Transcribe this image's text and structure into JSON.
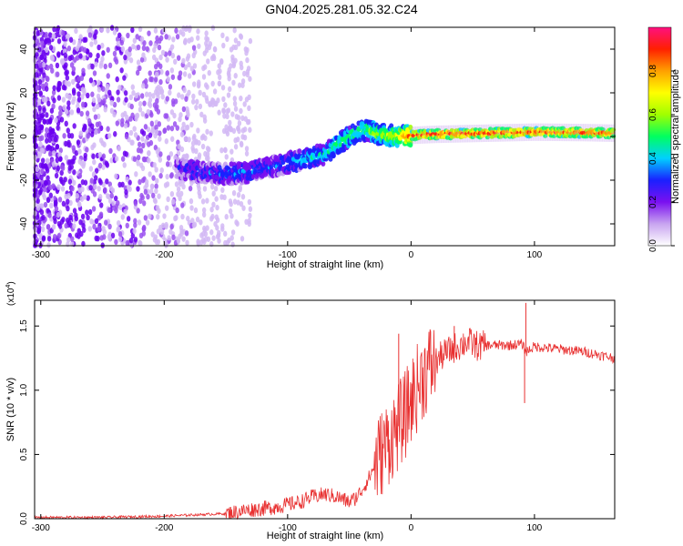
{
  "title": "GN04.2025.281.05.32.C24",
  "chart_data": [
    {
      "type": "heatmap",
      "title": "GN04.2025.281.05.32.C24",
      "xlabel": "Height of straight line (km)",
      "ylabel": "Frequency (Hz)",
      "xlim": [
        -305,
        165
      ],
      "ylim": [
        -50,
        50
      ],
      "xticks": [
        -300,
        -200,
        -100,
        0,
        100
      ],
      "yticks": [
        -40,
        -20,
        0,
        20,
        40
      ],
      "colorbar": {
        "label": "Normalized spectral amplitude",
        "range": [
          0,
          1
        ],
        "ticks": [
          0.0,
          0.2,
          0.4,
          0.6,
          0.8
        ],
        "tick_labels": [
          "0.0",
          "0.2",
          "0.4",
          "0.6",
          "0.8"
        ],
        "colormap": "rainbow (violet-blue-cyan-green-yellow-red-magenta)",
        "stops": [
          "#ffffff",
          "#c8a4f0",
          "#7a10f0",
          "#1a20ff",
          "#00d0ff",
          "#00ff60",
          "#a0ff00",
          "#ffff00",
          "#ffa000",
          "#ff2000",
          "#ff1080"
        ]
      },
      "ridge": {
        "x": [
          -190,
          -175,
          -160,
          -140,
          -120,
          -100,
          -85,
          -70,
          -55,
          -45,
          -35,
          -25,
          -10,
          0,
          20,
          60,
          100,
          140,
          165
        ],
        "y": [
          -14,
          -16,
          -17,
          -17,
          -15,
          -12,
          -10,
          -8,
          -2,
          2,
          3,
          1,
          0,
          0.5,
          1,
          1.5,
          2,
          1.8,
          1.5
        ],
        "peak_amplitude": [
          0.2,
          0.3,
          0.3,
          0.35,
          0.3,
          0.35,
          0.4,
          0.45,
          0.5,
          0.5,
          0.55,
          0.6,
          0.7,
          0.9,
          0.95,
          0.9,
          0.9,
          0.9,
          0.85
        ]
      }
    },
    {
      "type": "line",
      "xlabel": "Height of straight line (km)",
      "ylabel": "SNR (10 * v/v)",
      "y_multiplier_label": "(x10",
      "y_multiplier_exp": "4",
      "y_multiplier_close": ")",
      "xlim": [
        -305,
        165
      ],
      "ylim": [
        0,
        1.7
      ],
      "xticks": [
        -300,
        -200,
        -100,
        0,
        100
      ],
      "yticks": [
        0.0,
        0.5,
        1.0,
        1.5
      ],
      "ytick_labels": [
        "0.0",
        "0.5",
        "1.0",
        "1.5"
      ],
      "series": [
        {
          "name": "SNR",
          "color": "#e83030",
          "x": [
            -305,
            -250,
            -200,
            -175,
            -150,
            -130,
            -110,
            -100,
            -90,
            -80,
            -70,
            -60,
            -50,
            -45,
            -40,
            -35,
            -30,
            -25,
            -20,
            -15,
            -10,
            -5,
            0,
            5,
            10,
            15,
            20,
            25,
            30,
            35,
            40,
            45,
            50,
            55,
            60,
            70,
            80,
            90,
            93,
            100,
            110,
            120,
            130,
            140,
            150,
            165
          ],
          "y": [
            0.01,
            0.01,
            0.02,
            0.03,
            0.04,
            0.07,
            0.09,
            0.11,
            0.13,
            0.17,
            0.19,
            0.17,
            0.13,
            0.16,
            0.22,
            0.3,
            0.4,
            0.5,
            0.58,
            0.65,
            0.72,
            0.8,
            0.92,
            1.02,
            1.12,
            1.18,
            1.22,
            1.27,
            1.3,
            1.33,
            1.35,
            1.38,
            1.36,
            1.34,
            1.35,
            1.35,
            1.35,
            1.36,
            1.3,
            1.34,
            1.33,
            1.32,
            1.31,
            1.3,
            1.28,
            1.25
          ]
        }
      ],
      "spikes": [
        {
          "x": 93,
          "y": 1.68
        },
        {
          "x": 92,
          "y": 0.9
        },
        {
          "x": 35,
          "y": 1.5
        },
        {
          "x": -10,
          "y": 1.44
        }
      ]
    }
  ]
}
